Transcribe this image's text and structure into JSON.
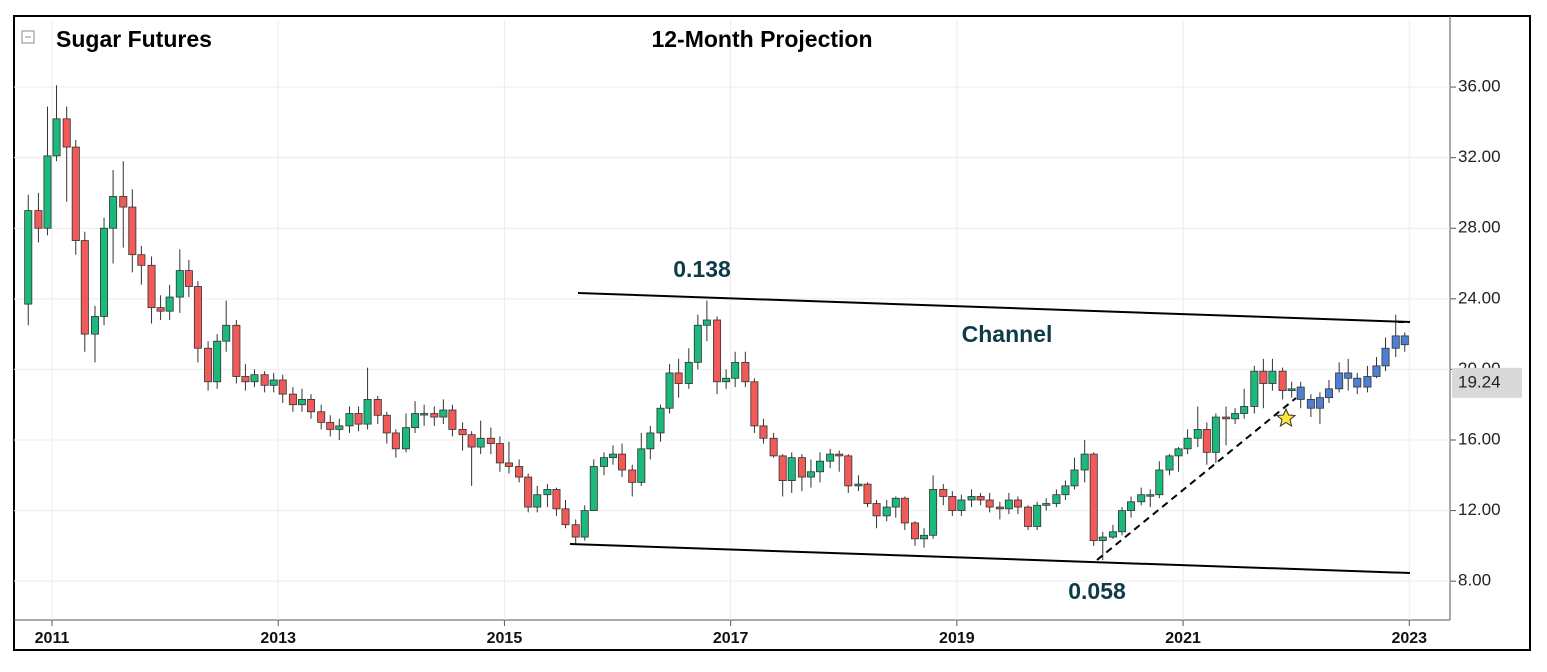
{
  "chart_data": {
    "type": "candlestick",
    "title": "Sugar Futures",
    "subtitle": "12-Month Projection",
    "annotations": [
      "0.138",
      "Channel",
      "0.058"
    ],
    "last_price": {
      "value": 19.24,
      "label": "19.24"
    },
    "xlim": [
      2010.664,
      2023.36
    ],
    "xticks": [
      2011,
      2013,
      2015,
      2017,
      2019,
      2021,
      2023
    ],
    "ylim": [
      5.8,
      39.8
    ],
    "yticks": [
      {
        "value": 8,
        "label": "8.00"
      },
      {
        "value": 12,
        "label": "12.00"
      },
      {
        "value": 16,
        "label": "16.00"
      },
      {
        "value": 20,
        "label": "20.00"
      },
      {
        "value": 24,
        "label": "24.00"
      },
      {
        "value": 28,
        "label": "28.00"
      },
      {
        "value": 32,
        "label": "32.00"
      },
      {
        "value": 36,
        "label": "36.00"
      }
    ],
    "grid": true,
    "series": [
      {
        "up_color": "#1db87c",
        "down_color": "#f05a58",
        "x": [
          2010.79,
          2010.88,
          2010.96,
          2011.04,
          2011.13,
          2011.21,
          2011.29,
          2011.38,
          2011.46,
          2011.54,
          2011.63,
          2011.71,
          2011.79,
          2011.88,
          2011.96,
          2012.04,
          2012.13,
          2012.21,
          2012.29,
          2012.38,
          2012.46,
          2012.54,
          2012.63,
          2012.71,
          2012.79,
          2012.88,
          2012.96,
          2013.04,
          2013.13,
          2013.21,
          2013.29,
          2013.38,
          2013.46,
          2013.54,
          2013.63,
          2013.71,
          2013.79,
          2013.88,
          2013.96,
          2014.04,
          2014.13,
          2014.21,
          2014.29,
          2014.38,
          2014.46,
          2014.54,
          2014.63,
          2014.71,
          2014.79,
          2014.88,
          2014.96,
          2015.04,
          2015.13,
          2015.21,
          2015.29,
          2015.38,
          2015.46,
          2015.54,
          2015.63,
          2015.71,
          2015.79,
          2015.88,
          2015.96,
          2016.04,
          2016.13,
          2016.21,
          2016.29,
          2016.38,
          2016.46,
          2016.54,
          2016.63,
          2016.71,
          2016.79,
          2016.88,
          2016.96,
          2017.04,
          2017.13,
          2017.21,
          2017.29,
          2017.38,
          2017.46,
          2017.54,
          2017.63,
          2017.71,
          2017.79,
          2017.88,
          2017.96,
          2018.04,
          2018.13,
          2018.21,
          2018.29,
          2018.38,
          2018.46,
          2018.54,
          2018.63,
          2018.71,
          2018.79,
          2018.88,
          2018.96,
          2019.04,
          2019.13,
          2019.21,
          2019.29,
          2019.38,
          2019.46,
          2019.54,
          2019.63,
          2019.71,
          2019.79,
          2019.88,
          2019.96,
          2020.04,
          2020.13,
          2020.21,
          2020.29,
          2020.38,
          2020.46,
          2020.54,
          2020.63,
          2020.71,
          2020.79,
          2020.88,
          2020.96,
          2021.04,
          2021.13,
          2021.21,
          2021.29,
          2021.38,
          2021.46,
          2021.54,
          2021.63,
          2021.71,
          2021.79,
          2021.88,
          2021.96
        ],
        "open": [
          23.7,
          29.0,
          28.0,
          32.1,
          34.2,
          32.6,
          27.3,
          22.0,
          23.0,
          28.0,
          29.8,
          29.2,
          26.5,
          25.9,
          23.5,
          23.3,
          24.1,
          25.6,
          24.7,
          21.2,
          19.3,
          21.6,
          22.5,
          19.6,
          19.3,
          19.7,
          19.1,
          19.4,
          18.6,
          18.0,
          18.3,
          17.6,
          17.0,
          16.6,
          16.8,
          17.5,
          16.9,
          18.3,
          17.4,
          16.4,
          15.5,
          16.7,
          17.5,
          17.5,
          17.3,
          17.7,
          16.6,
          16.3,
          15.6,
          16.1,
          15.8,
          14.7,
          14.5,
          13.9,
          12.2,
          12.9,
          13.2,
          12.1,
          11.2,
          10.5,
          12.0,
          14.5,
          15.0,
          15.2,
          14.3,
          13.6,
          15.5,
          16.4,
          17.8,
          19.8,
          19.2,
          20.4,
          22.5,
          22.8,
          19.3,
          19.5,
          20.4,
          19.3,
          16.8,
          16.1,
          15.1,
          13.7,
          15.0,
          13.9,
          14.2,
          14.8,
          15.2,
          15.1,
          13.4,
          13.5,
          12.4,
          11.7,
          12.2,
          12.7,
          11.3,
          10.4,
          10.6,
          13.2,
          12.8,
          12.0,
          12.6,
          12.8,
          12.6,
          12.2,
          12.1,
          12.6,
          12.2,
          11.1,
          12.3,
          12.4,
          12.9,
          13.4,
          14.3,
          15.2,
          10.3,
          10.5,
          10.8,
          12.0,
          12.5,
          12.9,
          12.9,
          14.3,
          15.1,
          15.5,
          16.1,
          16.6,
          15.3,
          17.3,
          17.2,
          17.5,
          17.9,
          19.9,
          19.2,
          19.9,
          18.8
        ],
        "high": [
          29.9,
          30.0,
          34.9,
          36.1,
          34.9,
          33.0,
          27.8,
          23.6,
          28.6,
          31.3,
          31.8,
          30.2,
          27.0,
          26.4,
          24.2,
          24.8,
          26.8,
          26.2,
          25.0,
          21.6,
          22.0,
          23.9,
          22.8,
          20.3,
          20.0,
          19.9,
          19.8,
          19.7,
          19.0,
          18.9,
          18.6,
          18.0,
          17.4,
          17.2,
          17.9,
          17.9,
          20.1,
          18.5,
          17.6,
          16.6,
          17.5,
          18.2,
          18.0,
          17.9,
          18.3,
          18.0,
          17.0,
          16.5,
          17.1,
          16.7,
          16.2,
          15.9,
          14.9,
          14.1,
          13.4,
          13.5,
          13.3,
          12.6,
          11.5,
          12.3,
          14.9,
          15.3,
          15.7,
          15.8,
          14.6,
          16.4,
          16.8,
          18.0,
          20.3,
          20.6,
          21.2,
          23.1,
          23.9,
          23.0,
          20.0,
          21.0,
          21.0,
          19.5,
          17.2,
          16.4,
          15.2,
          15.3,
          15.2,
          14.9,
          15.3,
          15.5,
          15.4,
          15.2,
          14.0,
          13.6,
          12.6,
          12.6,
          12.8,
          12.8,
          11.4,
          11.0,
          14.0,
          13.5,
          13.1,
          12.9,
          13.2,
          13.0,
          13.0,
          12.5,
          13.0,
          12.8,
          12.3,
          12.5,
          12.7,
          13.2,
          13.7,
          15.0,
          16.0,
          15.3,
          10.8,
          11.2,
          12.2,
          12.8,
          13.3,
          13.2,
          14.8,
          15.2,
          15.6,
          16.6,
          17.9,
          17.0,
          17.5,
          17.9,
          17.8,
          18.9,
          20.2,
          20.6,
          20.6,
          20.1,
          19.3
        ],
        "low": [
          22.5,
          27.2,
          27.6,
          31.8,
          29.5,
          26.5,
          21.0,
          20.4,
          22.5,
          26.0,
          26.9,
          25.5,
          24.8,
          22.6,
          22.8,
          22.8,
          23.2,
          24.1,
          20.4,
          18.8,
          18.9,
          21.0,
          19.2,
          18.8,
          19.0,
          18.7,
          18.7,
          18.1,
          17.6,
          17.6,
          17.2,
          16.6,
          16.2,
          16.0,
          16.4,
          16.5,
          16.6,
          16.9,
          15.8,
          15.0,
          15.3,
          16.4,
          16.8,
          16.8,
          16.9,
          16.2,
          15.4,
          13.4,
          15.2,
          15.2,
          14.2,
          14.1,
          13.6,
          11.9,
          11.9,
          12.2,
          11.7,
          11.0,
          10.1,
          10.3,
          12.0,
          14.0,
          14.6,
          13.9,
          12.8,
          13.4,
          14.9,
          15.9,
          17.5,
          18.4,
          18.9,
          20.0,
          21.6,
          18.6,
          18.9,
          19.0,
          19.0,
          16.4,
          15.8,
          15.0,
          12.8,
          13.0,
          13.1,
          13.3,
          13.6,
          14.4,
          14.2,
          13.0,
          13.1,
          12.2,
          11.0,
          11.4,
          11.6,
          10.9,
          10.0,
          9.9,
          10.4,
          12.3,
          11.7,
          11.7,
          12.2,
          12.3,
          11.9,
          11.5,
          11.8,
          11.8,
          10.9,
          10.9,
          12.0,
          12.2,
          12.6,
          13.2,
          13.6,
          10.0,
          9.2,
          10.4,
          10.6,
          11.6,
          12.3,
          12.2,
          12.7,
          14.0,
          14.2,
          15.2,
          15.6,
          14.6,
          14.7,
          15.7,
          16.9,
          17.2,
          17.5,
          17.8,
          18.8,
          18.3,
          18.4
        ],
        "close": [
          29.0,
          28.0,
          32.1,
          34.2,
          32.6,
          27.3,
          22.0,
          23.0,
          28.0,
          29.8,
          29.2,
          26.5,
          25.9,
          23.5,
          23.3,
          24.1,
          25.6,
          24.7,
          21.2,
          19.3,
          21.6,
          22.5,
          19.6,
          19.3,
          19.7,
          19.1,
          19.4,
          18.6,
          18.0,
          18.3,
          17.6,
          17.0,
          16.6,
          16.8,
          17.5,
          16.9,
          18.3,
          17.4,
          16.4,
          15.5,
          16.7,
          17.5,
          17.5,
          17.3,
          17.7,
          16.6,
          16.3,
          15.6,
          16.1,
          15.8,
          14.7,
          14.5,
          13.9,
          12.2,
          12.9,
          13.2,
          12.1,
          11.2,
          10.5,
          12.0,
          14.5,
          15.0,
          15.2,
          14.3,
          13.6,
          15.5,
          16.4,
          17.8,
          19.8,
          19.2,
          20.4,
          22.5,
          22.8,
          19.3,
          19.5,
          20.4,
          19.3,
          16.8,
          16.1,
          15.1,
          13.7,
          15.0,
          13.9,
          14.2,
          14.8,
          15.2,
          15.1,
          13.4,
          13.5,
          12.4,
          11.7,
          12.2,
          12.7,
          11.3,
          10.4,
          10.6,
          13.2,
          12.8,
          12.0,
          12.6,
          12.8,
          12.6,
          12.2,
          12.1,
          12.6,
          12.2,
          11.1,
          12.3,
          12.4,
          12.9,
          13.4,
          14.3,
          15.2,
          10.3,
          10.5,
          10.8,
          12.0,
          12.5,
          12.9,
          12.9,
          14.3,
          15.1,
          15.5,
          16.1,
          16.6,
          15.3,
          17.3,
          17.2,
          17.5,
          17.9,
          19.9,
          19.2,
          19.9,
          18.8,
          18.9
        ]
      },
      {
        "color": "#4f7fd1",
        "x": [
          2022.04,
          2022.13,
          2022.21,
          2022.29,
          2022.38,
          2022.46,
          2022.54,
          2022.63,
          2022.71,
          2022.79,
          2022.88,
          2022.96
        ],
        "open": [
          19.0,
          18.3,
          17.8,
          18.4,
          18.9,
          19.8,
          19.5,
          19.0,
          19.6,
          20.2,
          21.2,
          21.9
        ],
        "high": [
          19.3,
          18.6,
          18.7,
          19.4,
          20.4,
          20.6,
          19.8,
          20.2,
          20.7,
          21.8,
          23.1,
          22.1
        ],
        "low": [
          17.8,
          17.3,
          16.9,
          18.1,
          18.7,
          18.8,
          18.6,
          18.7,
          19.5,
          19.9,
          20.7,
          21.0
        ],
        "close": [
          18.3,
          17.8,
          18.4,
          18.9,
          19.8,
          19.5,
          19.0,
          19.6,
          20.2,
          21.2,
          21.9,
          21.4
        ]
      }
    ]
  }
}
